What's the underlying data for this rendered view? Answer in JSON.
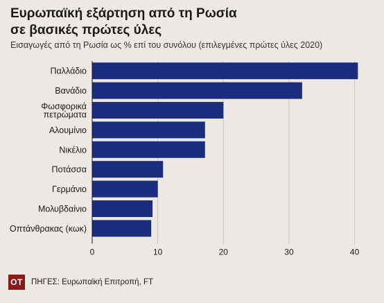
{
  "title_lines": [
    "Ευρωπαϊκή εξάρτηση από τη Ρωσία",
    "σε βασικές πρώτες ύλες"
  ],
  "subtitle": "Εισαγωγές από τη Ρωσία ως % επί του συνόλου (επιλεγμένες πρώτες ύλες 2020)",
  "footer": {
    "logo_text": "ΟΤ",
    "source": "ΠΗΓΕΣ: Ευρωπαϊκή Επιτροπή, FT"
  },
  "colors": {
    "bar": "#1b2d7e",
    "background": "#ece8e3",
    "grid": "#c9c5c0",
    "logo": "#8b1a1a"
  },
  "chart_data": {
    "type": "bar",
    "orientation": "horizontal",
    "categories": [
      [
        "Παλλάδιο"
      ],
      [
        "Βανάδιο"
      ],
      [
        "Φωσφορικά",
        "πετρώματα"
      ],
      [
        "Αλουμίνιο"
      ],
      [
        "Νικέλιο"
      ],
      [
        "Ποτάσσα"
      ],
      [
        "Γερμάνιο"
      ],
      [
        "Μολυβδαίνιο"
      ],
      [
        "Οπτάνθρακας (κωκ)"
      ]
    ],
    "values": [
      40.5,
      32,
      20,
      17.2,
      17.2,
      10.8,
      10,
      9.2,
      9
    ],
    "xlim": [
      0,
      43
    ],
    "xticks": [
      0,
      10,
      20,
      30,
      40
    ],
    "grid": true
  }
}
